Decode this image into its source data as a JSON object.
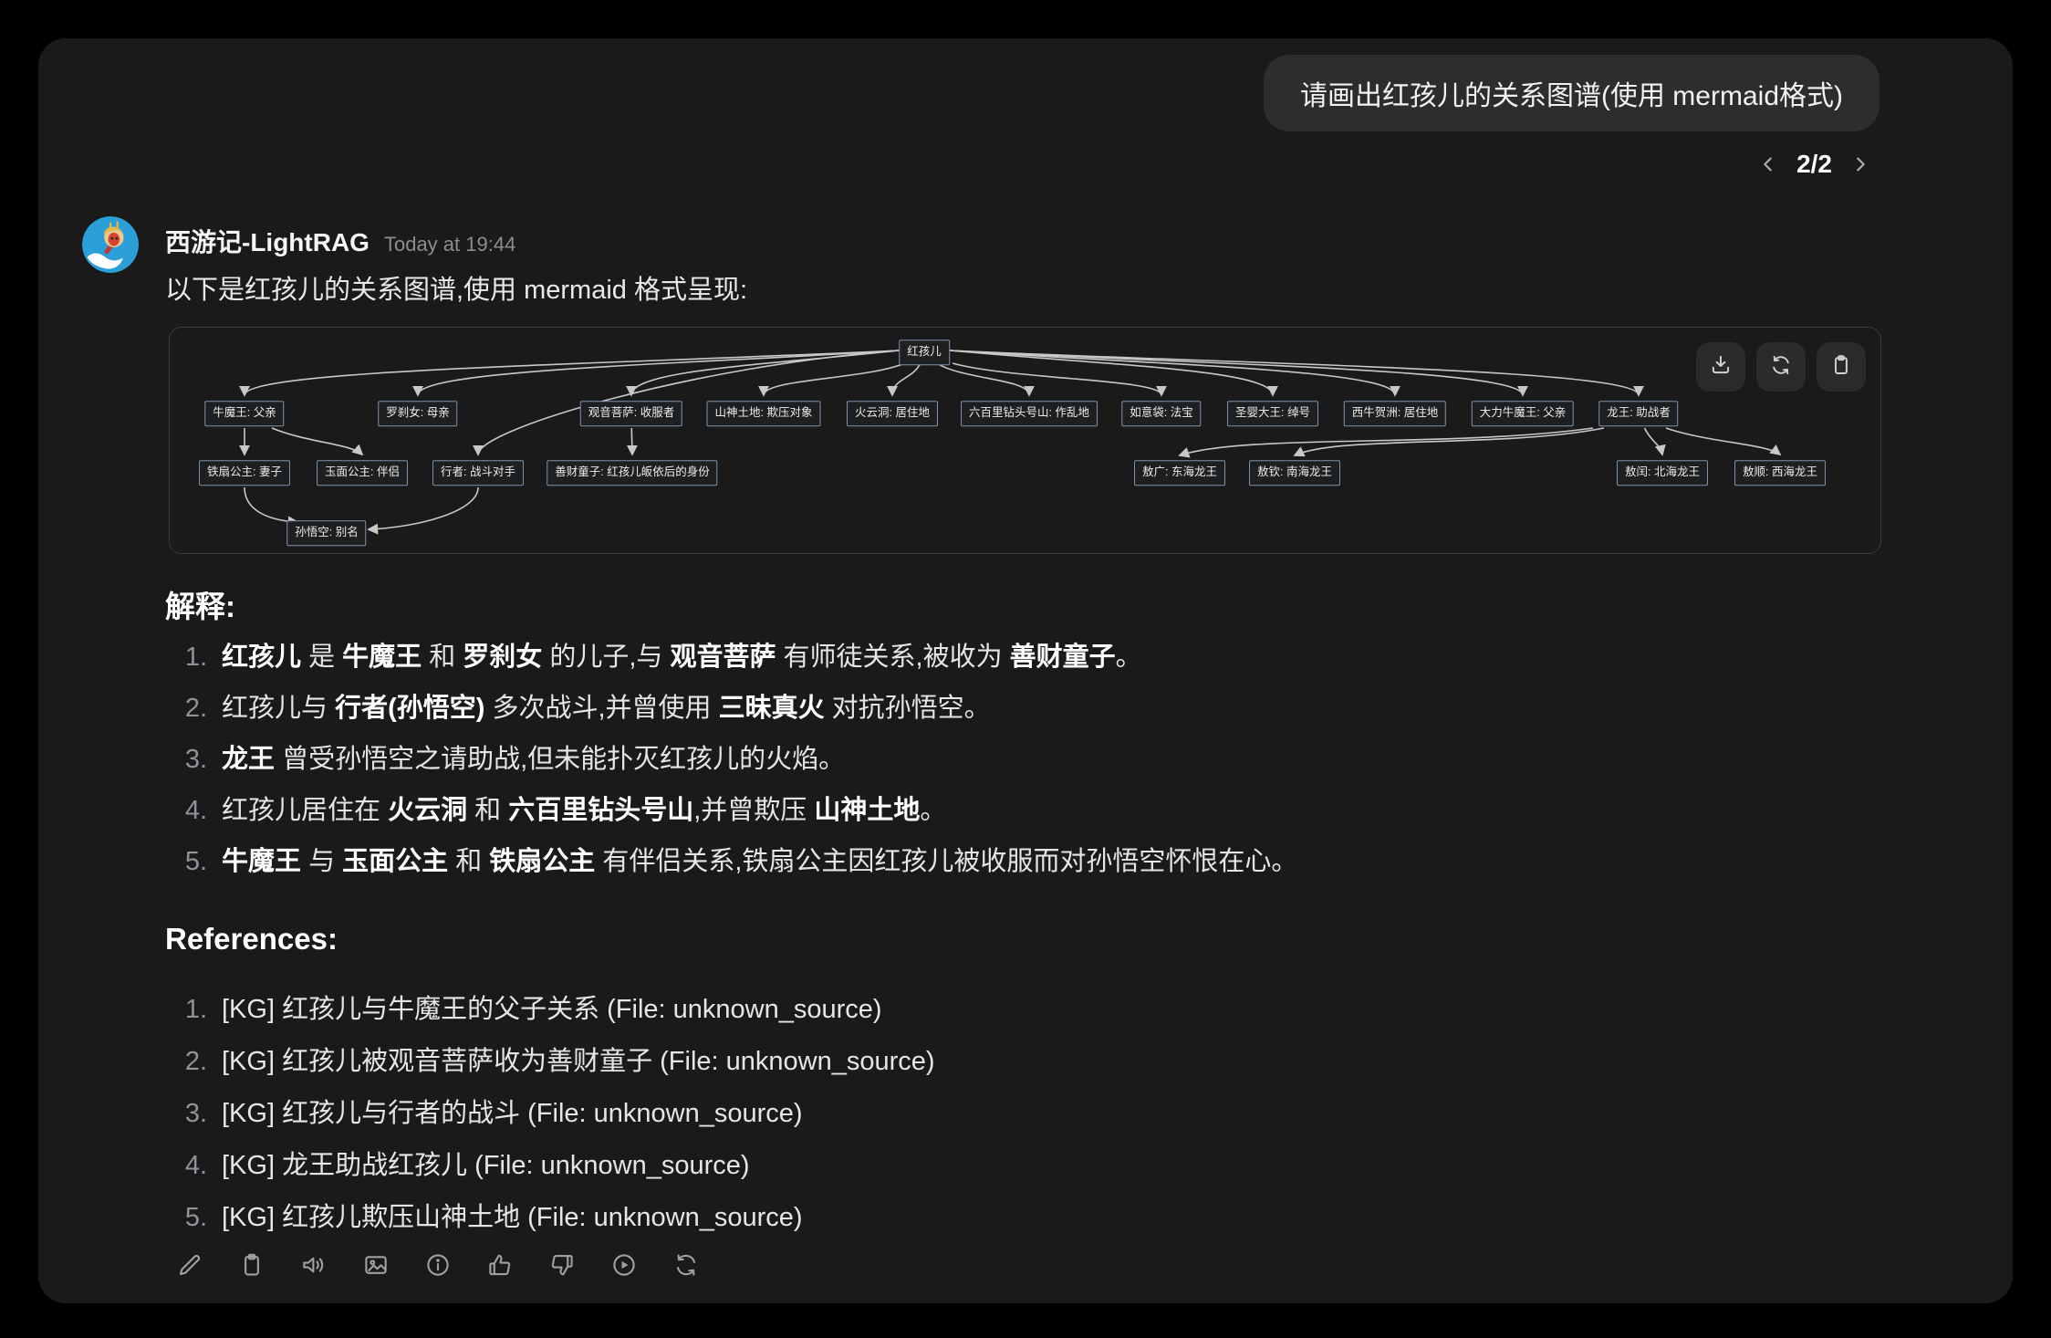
{
  "user_message": {
    "text": "请画出红孩儿的关系图谱(使用 mermaid格式)"
  },
  "pagination": {
    "current": "2/2",
    "prev_icon": "chevron-left-icon",
    "next_icon": "chevron-right-icon"
  },
  "assistant": {
    "name": "西游记-LightRAG",
    "timestamp": "Today at 19:44",
    "intro": "以下是红孩儿的关系图谱,使用 mermaid 格式呈现:"
  },
  "diagram": {
    "toolbar": [
      {
        "icon": "download-icon"
      },
      {
        "icon": "refresh-icon"
      },
      {
        "icon": "clipboard-icon"
      }
    ],
    "nodes": [
      {
        "id": "honghaier",
        "label": "红孩儿"
      },
      {
        "id": "niumowang",
        "label": "牛魔王: 父亲"
      },
      {
        "id": "luochanu",
        "label": "罗刹女: 母亲"
      },
      {
        "id": "guanyin",
        "label": "观音菩萨: 收服者"
      },
      {
        "id": "shanshen",
        "label": "山神土地: 欺压对象"
      },
      {
        "id": "huoyundong",
        "label": "火云洞: 居住地"
      },
      {
        "id": "zuantou",
        "label": "六百里钻头号山: 作乱地"
      },
      {
        "id": "ruyidai",
        "label": "如意袋: 法宝"
      },
      {
        "id": "shengying",
        "label": "圣婴大王: 绰号"
      },
      {
        "id": "xiniu",
        "label": "西牛贺洲: 居住地"
      },
      {
        "id": "dali",
        "label": "大力牛魔王: 父亲"
      },
      {
        "id": "longwang",
        "label": "龙王: 助战者"
      },
      {
        "id": "tieshan",
        "label": "铁扇公主: 妻子"
      },
      {
        "id": "yumian",
        "label": "玉面公主: 伴侣"
      },
      {
        "id": "xingzhe",
        "label": "行者: 战斗对手"
      },
      {
        "id": "shancai",
        "label": "善财童子: 红孩儿皈依后的身份"
      },
      {
        "id": "aoguang",
        "label": "敖广: 东海龙王"
      },
      {
        "id": "aoqin",
        "label": "敖钦: 南海龙王"
      },
      {
        "id": "aorun",
        "label": "敖闰: 北海龙王"
      },
      {
        "id": "aoshun",
        "label": "敖顺: 西海龙王"
      },
      {
        "id": "sunwukong",
        "label": "孙悟空: 别名"
      }
    ],
    "edges": [
      {
        "from": "honghaier",
        "to": "niumowang"
      },
      {
        "from": "honghaier",
        "to": "luochanu"
      },
      {
        "from": "honghaier",
        "to": "guanyin"
      },
      {
        "from": "honghaier",
        "to": "shanshen"
      },
      {
        "from": "honghaier",
        "to": "huoyundong"
      },
      {
        "from": "honghaier",
        "to": "zuantou"
      },
      {
        "from": "honghaier",
        "to": "ruyidai"
      },
      {
        "from": "honghaier",
        "to": "shengying"
      },
      {
        "from": "honghaier",
        "to": "xiniu"
      },
      {
        "from": "honghaier",
        "to": "dali"
      },
      {
        "from": "honghaier",
        "to": "longwang"
      },
      {
        "from": "honghaier",
        "to": "xingzhe"
      },
      {
        "from": "niumowang",
        "to": "tieshan"
      },
      {
        "from": "niumowang",
        "to": "yumian"
      },
      {
        "from": "guanyin",
        "to": "shancai"
      },
      {
        "from": "tieshan",
        "to": "sunwukong"
      },
      {
        "from": "xingzhe",
        "to": "sunwukong"
      },
      {
        "from": "longwang",
        "to": "aoguang"
      },
      {
        "from": "longwang",
        "to": "aoqin"
      },
      {
        "from": "longwang",
        "to": "aorun"
      },
      {
        "from": "longwang",
        "to": "aoshun"
      }
    ]
  },
  "explanation": {
    "heading": "解释:",
    "items": [
      "**红孩儿** 是 **牛魔王** 和 **罗刹女** 的儿子,与 **观音菩萨** 有师徒关系,被收为 **善财童子**。",
      "红孩儿与 **行者(孙悟空)** 多次战斗,并曾使用 **三昧真火** 对抗孙悟空。",
      "**龙王** 曾受孙悟空之请助战,但未能扑灭红孩儿的火焰。",
      "红孩儿居住在 **火云洞** 和 **六百里钻头号山**,并曾欺压 **山神土地**。",
      "**牛魔王** 与 **玉面公主** 和 **铁扇公主** 有伴侣关系,铁扇公主因红孩儿被收服而对孙悟空怀恨在心。"
    ]
  },
  "references": {
    "heading": "References:",
    "items": [
      "[KG] 红孩儿与牛魔王的父子关系 (File: unknown_source)",
      "[KG] 红孩儿被观音菩萨收为善财童子 (File: unknown_source)",
      "[KG] 红孩儿与行者的战斗 (File: unknown_source)",
      "[KG] 龙王助战红孩儿 (File: unknown_source)",
      "[KG] 红孩儿欺压山神土地 (File: unknown_source)"
    ]
  },
  "message_toolbar": {
    "icons": [
      "edit-icon",
      "copy-icon",
      "read-aloud-icon",
      "image-icon",
      "info-icon",
      "thumbs-up-icon",
      "thumbs-down-icon",
      "play-icon",
      "regenerate-icon"
    ]
  },
  "colors": {
    "page_bg": "#000000",
    "panel_bg": "#1a1a1a",
    "bubble_bg": "#2d2d2f",
    "node_border": "#7d93ab",
    "edge": "#c8c8c8",
    "avatar_bg": "#2b9fd8"
  }
}
